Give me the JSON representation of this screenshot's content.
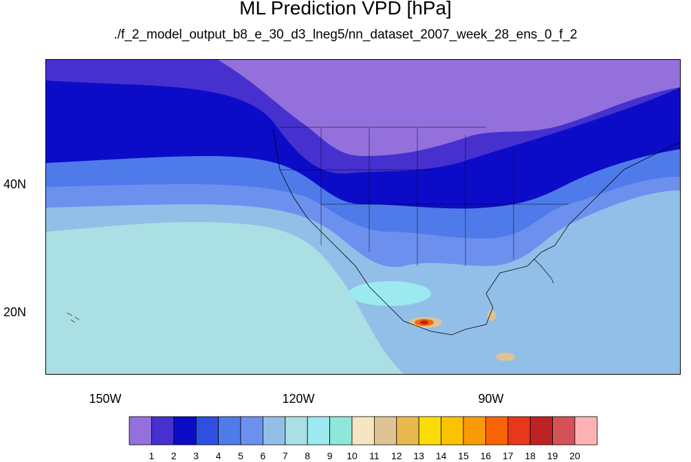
{
  "title": "ML Prediction VPD [hPa]",
  "subtitle": "./f_2_model_output_b8_e_30_d3_lneg5/nn_dataset_2007_week_28_ens_0_f_2",
  "map": {
    "projection": "cylindrical-equidistant",
    "lat_range": [
      11,
      60
    ],
    "lon_range": [
      -160,
      -61
    ],
    "lat_tick_labels": [
      "40N",
      "20N"
    ],
    "lon_tick_labels": [
      "150W",
      "120W",
      "90W"
    ],
    "features": [
      "coastlines",
      "US state boundaries",
      "Canada/Mexico borders",
      "Hawaii"
    ]
  },
  "colorbar": {
    "labels": [
      "1",
      "2",
      "3",
      "4",
      "5",
      "6",
      "7",
      "8",
      "9",
      "10",
      "11",
      "12",
      "13",
      "14",
      "15",
      "16",
      "17",
      "18",
      "19",
      "20"
    ],
    "colors": [
      "#9370db",
      "#4631cf",
      "#0c0cc8",
      "#2f4fe0",
      "#4f7bea",
      "#6d90ee",
      "#92bfe8",
      "#aadfe3",
      "#9ceaf0",
      "#8ee7d8",
      "#f5e6c1",
      "#e0c394",
      "#e8b94f",
      "#fbdc07",
      "#fbc200",
      "#fa9a06",
      "#f86404",
      "#e83719",
      "#bd2323",
      "#d55158",
      "#fdb3b5"
    ]
  }
}
